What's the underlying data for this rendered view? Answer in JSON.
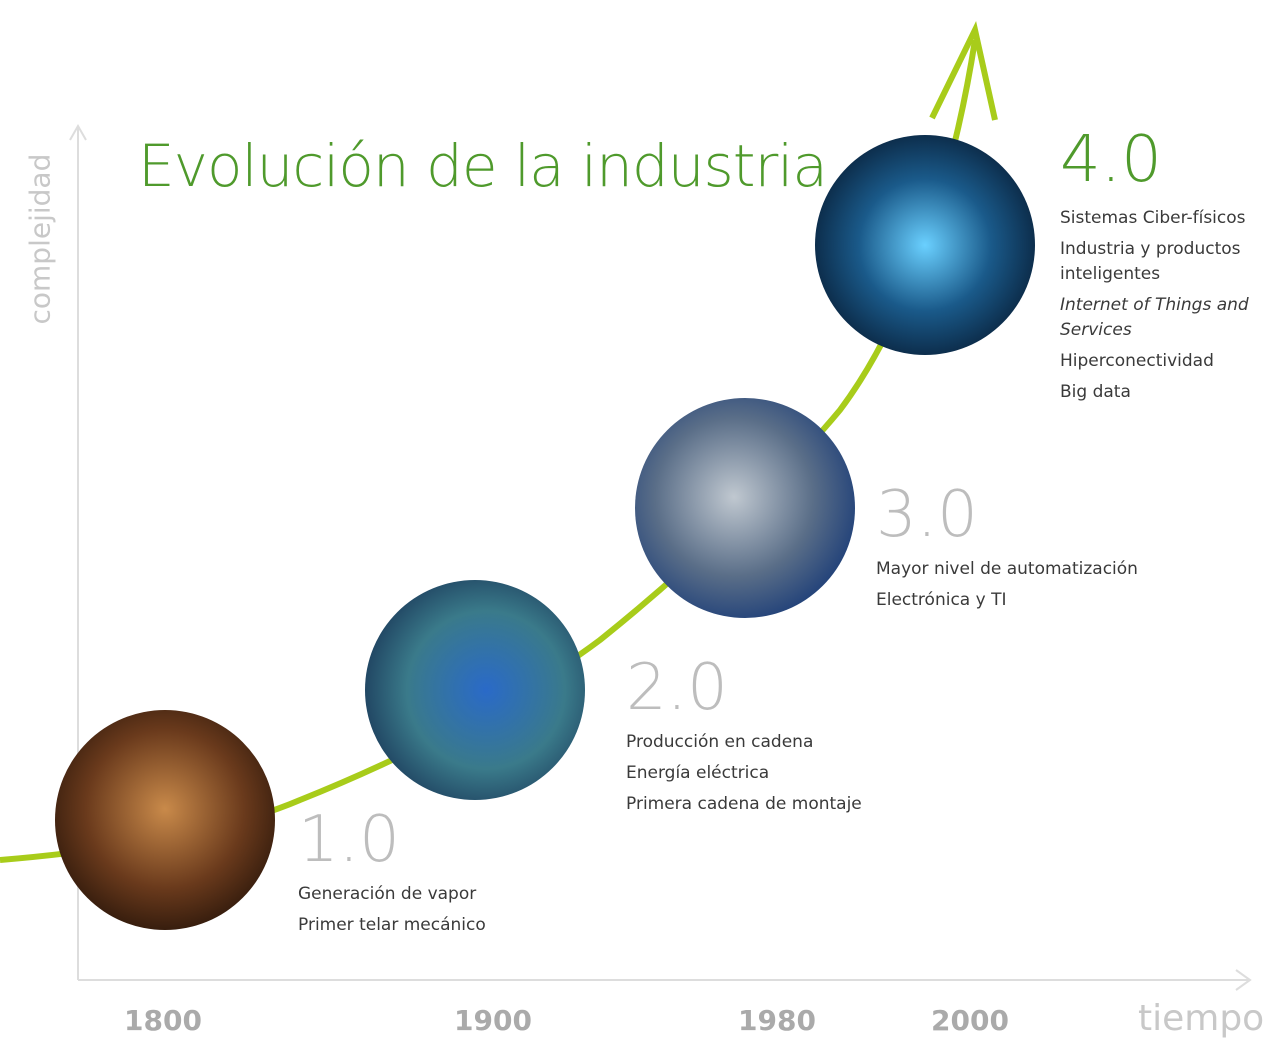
{
  "title": "Evolución de la industria",
  "axes": {
    "y_label": "complejidad",
    "x_label": "tiempo"
  },
  "years": [
    "1800",
    "1900",
    "1980",
    "2000"
  ],
  "stages": [
    {
      "label": "1.0",
      "items": [
        "Generación de vapor",
        "Primer telar mecánico"
      ]
    },
    {
      "label": "2.0",
      "items": [
        "Producción en cadena",
        "Energía eléctrica",
        "Primera cadena de montaje"
      ]
    },
    {
      "label": "3.0",
      "items": [
        "Mayor nivel de automatización",
        "Electrónica y TI"
      ]
    },
    {
      "label": "4.0",
      "items": [
        "Sistemas Ciber-físicos",
        "Industria y productos inteligentes",
        "Internet of Things and Services",
        "Hiperconectividad",
        "Big data"
      ]
    }
  ]
}
